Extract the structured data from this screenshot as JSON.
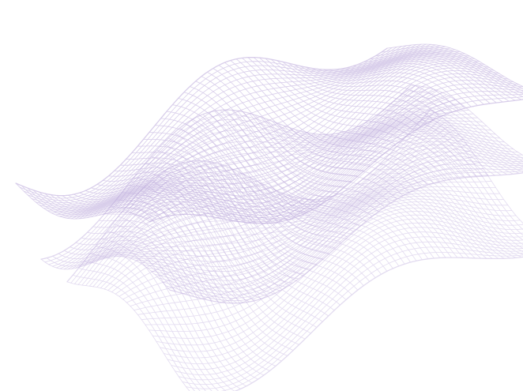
{
  "artwork": {
    "subject": "wireframe-wave-mesh",
    "background_color": "#ffffff",
    "stroke_color": "#b9a6da",
    "layers": [
      {
        "id": "mesh-layer-top"
      },
      {
        "id": "mesh-layer-middle"
      },
      {
        "id": "mesh-layer-bottom"
      }
    ]
  }
}
